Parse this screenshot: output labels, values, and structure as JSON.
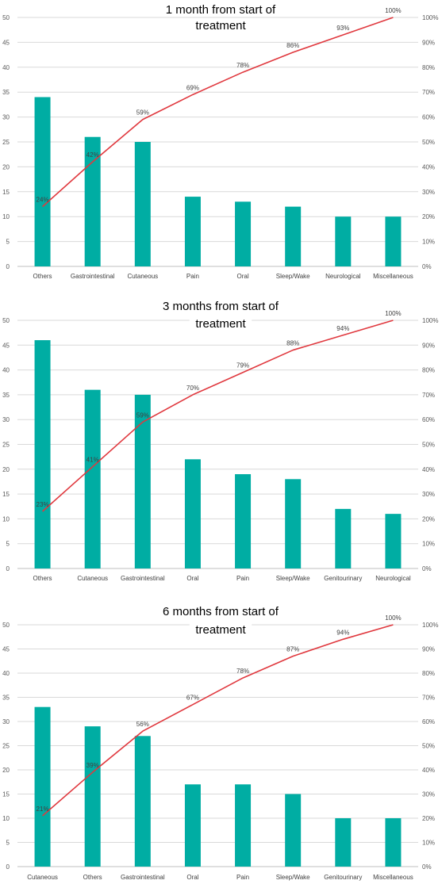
{
  "chart_data": [
    {
      "type": "bar",
      "title_lines": [
        "1 month from start of",
        "treatment"
      ],
      "categories": [
        "Others",
        "Gastrointestinal",
        "Cutaneous",
        "Pain",
        "Oral",
        "Sleep/Wake",
        "Neurological",
        "Miscellaneous"
      ],
      "values": [
        34,
        26,
        25,
        14,
        13,
        12,
        10,
        10
      ],
      "cumulative_labels": [
        "24%",
        "42%",
        "59%",
        "69%",
        "78%",
        "86%",
        "93%",
        "100%"
      ],
      "cumulative_values": [
        24,
        42,
        59,
        69,
        78,
        86,
        93,
        100
      ],
      "ylim": [
        0,
        50
      ],
      "yticks": [
        "0",
        "5",
        "10",
        "15",
        "20",
        "25",
        "30",
        "35",
        "40",
        "45",
        "50"
      ],
      "y2lim": [
        0,
        100
      ],
      "y2ticks": [
        "0%",
        "10%",
        "20%",
        "30%",
        "40%",
        "50%",
        "60%",
        "70%",
        "80%",
        "90%",
        "100%"
      ],
      "bar_color": "#00ADA3",
      "line_color": "#E0383E",
      "grid": true
    },
    {
      "type": "bar",
      "title_lines": [
        "3 months from start of",
        "treatment"
      ],
      "categories": [
        "Others",
        "Cutaneous",
        "Gastrointestinal",
        "Oral",
        "Pain",
        "Sleep/Wake",
        "Genitourinary",
        "Neurological"
      ],
      "values": [
        46,
        36,
        35,
        22,
        19,
        18,
        12,
        11
      ],
      "cumulative_labels": [
        "23%",
        "41%",
        "59%",
        "70%",
        "79%",
        "88%",
        "94%",
        "100%"
      ],
      "cumulative_values": [
        23,
        41,
        59,
        70,
        79,
        88,
        94,
        100
      ],
      "ylim": [
        0,
        50
      ],
      "yticks": [
        "0",
        "5",
        "10",
        "15",
        "20",
        "25",
        "30",
        "35",
        "40",
        "45",
        "50"
      ],
      "y2lim": [
        0,
        100
      ],
      "y2ticks": [
        "0%",
        "10%",
        "20%",
        "30%",
        "40%",
        "50%",
        "60%",
        "70%",
        "80%",
        "90%",
        "100%"
      ],
      "bar_color": "#00ADA3",
      "line_color": "#E0383E",
      "grid": true
    },
    {
      "type": "bar",
      "title_lines": [
        "6 months from start of",
        "treatment"
      ],
      "categories": [
        "Cutaneous",
        "Others",
        "Gastrointestinal",
        "Oral",
        "Pain",
        "Sleep/Wake",
        "Genitourinary",
        "Miscellaneous"
      ],
      "values": [
        33,
        29,
        27,
        17,
        17,
        15,
        10,
        10
      ],
      "cumulative_labels": [
        "21%",
        "39%",
        "56%",
        "67%",
        "78%",
        "87%",
        "94%",
        "100%"
      ],
      "cumulative_values": [
        21,
        39,
        56,
        67,
        78,
        87,
        94,
        100
      ],
      "ylim": [
        0,
        50
      ],
      "yticks": [
        "0",
        "5",
        "10",
        "15",
        "20",
        "25",
        "30",
        "35",
        "40",
        "45",
        "50"
      ],
      "y2lim": [
        0,
        100
      ],
      "y2ticks": [
        "0%",
        "10%",
        "20%",
        "30%",
        "40%",
        "50%",
        "60%",
        "70%",
        "80%",
        "90%",
        "100%"
      ],
      "bar_color": "#00ADA3",
      "line_color": "#E0383E",
      "grid": true
    }
  ]
}
